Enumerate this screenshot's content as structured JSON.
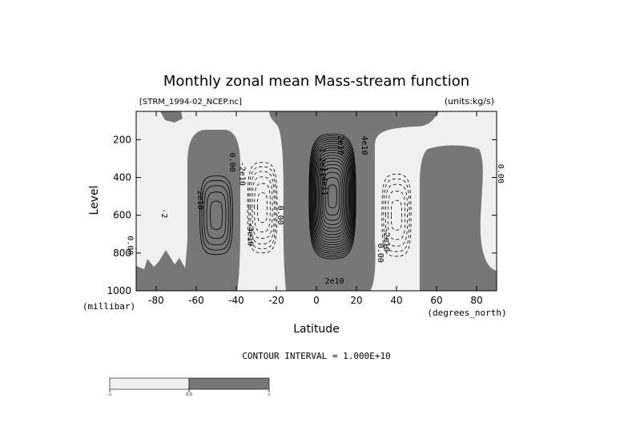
{
  "chart_data": {
    "type": "contour",
    "title": "Monthly zonal mean Mass-stream function",
    "file_label": "[STRM_1994-02_NCEP.nc]",
    "units_label": "(units:kg/s)",
    "xlabel": "Latitude",
    "xunit_label": "(degrees_north)",
    "ylabel": "Level",
    "yunit_label": "(millibar)",
    "xlim": [
      -90,
      90
    ],
    "ylim": [
      1000,
      50
    ],
    "y_inverted": true,
    "x_ticks": [
      "-80",
      "-60",
      "-40",
      "-20",
      "0",
      "20",
      "40",
      "60",
      "80"
    ],
    "x_tick_values": [
      -80,
      -60,
      -40,
      -20,
      0,
      20,
      40,
      60,
      80
    ],
    "y_ticks": [
      "200",
      "400",
      "600",
      "800",
      "1000"
    ],
    "y_tick_values": [
      200,
      400,
      600,
      800,
      1000
    ],
    "contour_interval_text": "CONTOUR INTERVAL = 1.000E+10",
    "contour_interval": 10000000000.0,
    "negative_style": "dashed",
    "shading": {
      "positive": "#777777",
      "negative": "#f0f0f0"
    },
    "cells": [
      {
        "sign": "pos",
        "lat": -50,
        "p": 600,
        "peak": 5,
        "w": 9,
        "h": 230
      },
      {
        "sign": "neg",
        "lat": -27,
        "p": 560,
        "peak": 6,
        "w": 8,
        "h": 260
      },
      {
        "sign": "pos",
        "lat": 8,
        "p": 500,
        "peak": 18,
        "w": 12,
        "h": 340
      },
      {
        "sign": "neg",
        "lat": 40,
        "p": 600,
        "peak": 5,
        "w": 8,
        "h": 240
      }
    ],
    "contour_labels": [
      {
        "text": "0.00",
        "lat": -42,
        "p": 320,
        "rot": 90
      },
      {
        "text": "-2e10",
        "lat": -37,
        "p": 380,
        "rot": 90
      },
      {
        "text": "2e10",
        "lat": -58,
        "p": 520,
        "rot": 90
      },
      {
        "text": "-4e10",
        "lat": -33,
        "p": 700,
        "rot": 90
      },
      {
        "text": "0.00",
        "lat": -18,
        "p": 600,
        "rot": 90
      },
      {
        "text": "0.00",
        "lat": -93,
        "p": 760,
        "rot": 90
      },
      {
        "text": "-2",
        "lat": -76,
        "p": 590,
        "rot": 90
      },
      {
        "text": "1.2e11",
        "lat": 3,
        "p": 320,
        "rot": 90
      },
      {
        "text": "1.4e11",
        "lat": 4,
        "p": 420,
        "rot": 90
      },
      {
        "text": "2e10",
        "lat": 12,
        "p": 230,
        "rot": 90
      },
      {
        "text": "4e10",
        "lat": 24,
        "p": 230,
        "rot": 90
      },
      {
        "text": "2e10",
        "lat": 9,
        "p": 950,
        "rot": 0
      },
      {
        "text": "-2e10",
        "lat": 35,
        "p": 730,
        "rot": 90
      },
      {
        "text": "0.00",
        "lat": 32,
        "p": 800,
        "rot": 90
      },
      {
        "text": "0.00",
        "lat": 92,
        "p": 380,
        "rot": 90
      }
    ],
    "colorbar": {
      "labels": [
        "-∞",
        "0.0",
        "∞"
      ],
      "colors": [
        "#f0f0f0",
        "#777777"
      ]
    }
  }
}
